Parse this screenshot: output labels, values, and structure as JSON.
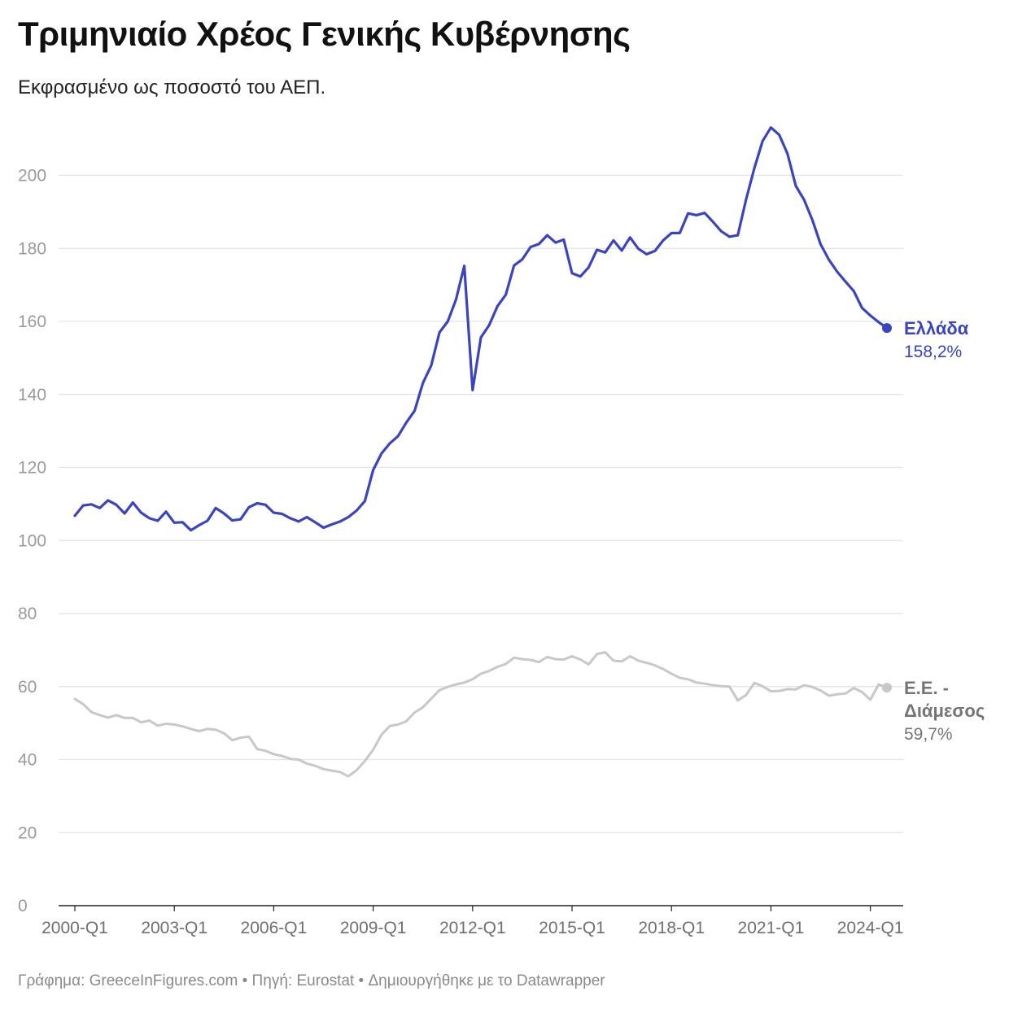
{
  "header": {
    "title": "Τριμηνιαίο Χρέος Γενικής Κυβέρνησης",
    "subtitle": "Εκφρασμένο ως ποσοστό του ΑΕΠ."
  },
  "footer": {
    "credit": "Γράφημα: GreeceInFigures.com",
    "separator": " • ",
    "source": "Πηγή: Eurostat",
    "made_with": "Δημιουργήθηκε με το Datawrapper"
  },
  "colors": {
    "greece": "#3A44C0",
    "eu": "#C8C8C8",
    "eu_label": "#757575",
    "grid": "#E3E3E3",
    "tick_text": "#9A9A9A",
    "axis": "#222222"
  },
  "chart_data": {
    "type": "line",
    "title": "Τριμηνιαίο Χρέος Γενικής Κυβέρνησης",
    "subtitle": "Εκφρασμένο ως ποσοστό του ΑΕΠ.",
    "xlabel": "",
    "ylabel": "",
    "ylim": [
      0,
      215
    ],
    "yticks": [
      0,
      20,
      40,
      60,
      80,
      100,
      120,
      140,
      160,
      180,
      200
    ],
    "grid": true,
    "x_start": "2000-Q1",
    "x_end": "2024-Q2",
    "xtick_labels": [
      "2000-Q1",
      "2003-Q1",
      "2006-Q1",
      "2009-Q1",
      "2012-Q1",
      "2015-Q1",
      "2018-Q1",
      "2021-Q1",
      "2024-Q1"
    ],
    "series": [
      {
        "name": "Ελλάδα",
        "end_label": "158,2%",
        "color": "#3A44C0",
        "values": [
          106.8,
          109.6,
          109.9,
          108.9,
          111.0,
          109.8,
          107.4,
          110.4,
          107.6,
          106.1,
          105.4,
          107.9,
          104.9,
          105.0,
          102.8,
          104.2,
          105.4,
          108.9,
          107.4,
          105.5,
          105.8,
          109.1,
          110.2,
          109.8,
          107.6,
          107.3,
          106.1,
          105.2,
          106.4,
          105.0,
          103.5,
          104.4,
          105.2,
          106.4,
          108.2,
          110.8,
          119.3,
          123.8,
          126.6,
          128.6,
          132.3,
          135.5,
          143.1,
          147.9,
          157.0,
          160.0,
          166.0,
          175.2,
          141.2,
          155.6,
          159.0,
          164.2,
          167.3,
          175.3,
          177.0,
          180.4,
          181.2,
          183.6,
          181.6,
          182.4,
          173.2,
          172.3,
          174.8,
          179.6,
          178.9,
          182.2,
          179.4,
          183.0,
          179.9,
          178.4,
          179.3,
          182.2,
          184.2,
          184.2,
          189.6,
          189.1,
          189.7,
          187.3,
          184.7,
          183.2,
          183.6,
          193.4,
          202.0,
          209.4,
          213.1,
          211.1,
          205.9,
          197.1,
          193.3,
          187.8,
          181.1,
          176.9,
          173.6,
          170.9,
          168.3,
          163.7,
          161.6,
          159.8,
          158.2
        ]
      },
      {
        "name": "Ε.Ε. - Διάμεσος",
        "end_label": "59,7%",
        "color": "#C8C8C8",
        "values": [
          56.6,
          55.2,
          53.0,
          52.2,
          51.5,
          52.2,
          51.4,
          51.4,
          50.2,
          50.7,
          49.3,
          49.8,
          49.6,
          49.1,
          48.4,
          47.8,
          48.4,
          48.2,
          47.2,
          45.3,
          46.0,
          46.3,
          42.9,
          42.4,
          41.5,
          41.0,
          40.2,
          40.0,
          38.9,
          38.3,
          37.4,
          37.0,
          36.6,
          35.4,
          37.1,
          39.6,
          42.7,
          46.8,
          49.2,
          49.6,
          50.5,
          52.9,
          54.3,
          56.7,
          59.0,
          59.9,
          60.6,
          61.1,
          62.0,
          63.5,
          64.3,
          65.4,
          66.2,
          67.9,
          67.5,
          67.3,
          66.7,
          68.1,
          67.5,
          67.4,
          68.3,
          67.4,
          66.1,
          68.9,
          69.4,
          67.1,
          66.9,
          68.3,
          67.1,
          66.5,
          65.8,
          64.8,
          63.5,
          62.4,
          62.0,
          61.1,
          60.8,
          60.4,
          60.1,
          60.0,
          56.2,
          57.7,
          61.0,
          60.1,
          58.7,
          58.8,
          59.3,
          59.2,
          60.4,
          59.9,
          58.9,
          57.5,
          57.9,
          58.1,
          59.6,
          58.5,
          56.4,
          60.6,
          59.7
        ]
      }
    ]
  }
}
